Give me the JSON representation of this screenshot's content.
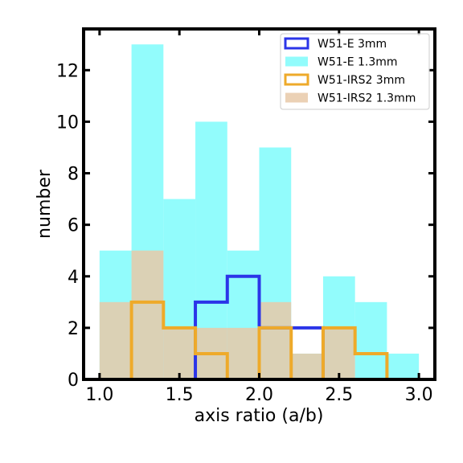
{
  "chart_data": {
    "type": "bar",
    "xlabel": "axis ratio (a/b)",
    "ylabel": "number",
    "xlim": [
      0.9,
      3.1
    ],
    "ylim": [
      0,
      13.6
    ],
    "x_ticks": [
      "1.0",
      "1.5",
      "2.0",
      "2.5",
      "3.0"
    ],
    "x_tick_values": [
      1.0,
      1.5,
      2.0,
      2.5,
      3.0
    ],
    "y_ticks": [
      "0",
      "2",
      "4",
      "6",
      "8",
      "10",
      "12"
    ],
    "y_tick_values": [
      0,
      2,
      4,
      6,
      8,
      10,
      12
    ],
    "bin_edges": [
      1.0,
      1.2,
      1.4,
      1.6,
      1.8,
      2.0,
      2.2,
      2.4,
      2.6,
      2.8,
      3.0
    ],
    "grid": false,
    "legend_position": "top-right",
    "series": [
      {
        "name": "W51-E 1.3mm",
        "style": "filled",
        "color": "#7ffcfc",
        "values": [
          5,
          13,
          7,
          10,
          5,
          9,
          1,
          4,
          3,
          1
        ]
      },
      {
        "name": "W51-IRS2 1.3mm",
        "style": "filled",
        "color": "#e8c9a8",
        "values": [
          3,
          5,
          2,
          2,
          2,
          3,
          1,
          2,
          0,
          0
        ]
      },
      {
        "name": "W51-E 3mm",
        "style": "step",
        "color": "#2b35e8",
        "values": [
          0,
          0,
          0,
          3,
          4,
          2,
          2,
          0,
          0,
          0
        ]
      },
      {
        "name": "W51-IRS2 3mm",
        "style": "step",
        "color": "#eeaa2a",
        "values": [
          0,
          3,
          2,
          1,
          0,
          2,
          0,
          2,
          1,
          0
        ]
      }
    ],
    "legend_order": [
      "W51-E 3mm",
      "W51-E 1.3mm",
      "W51-IRS2 3mm",
      "W51-IRS2 1.3mm"
    ]
  }
}
